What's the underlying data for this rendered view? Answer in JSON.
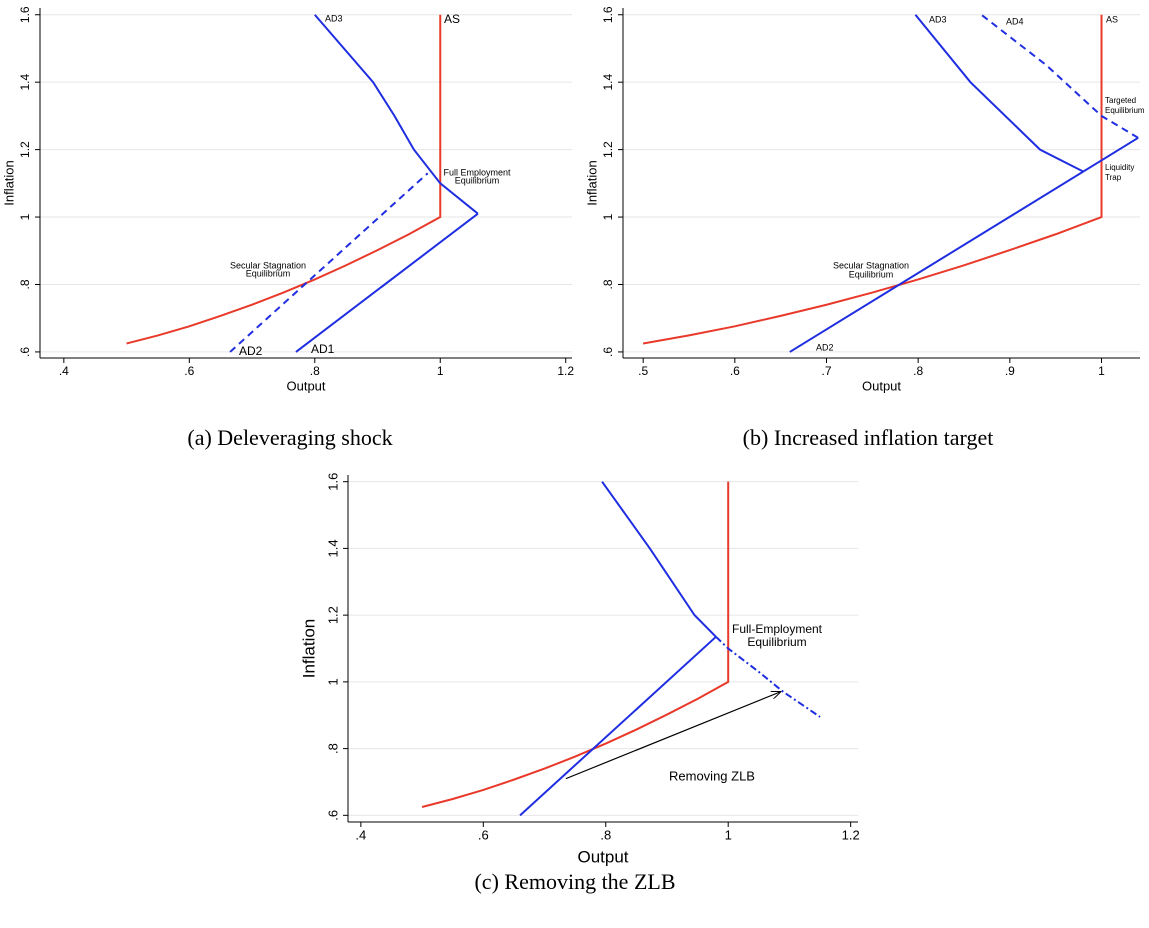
{
  "chart_data": [
    {
      "type": "line",
      "caption": "(a) Deleveraging shock",
      "x_label": "Output",
      "y_label": "Inflation",
      "xlim": [
        0.362,
        1.21
      ],
      "ylim": [
        0.582,
        1.62
      ],
      "grid": true,
      "xticks": [
        {
          "value": 0.4,
          "label": ".4"
        },
        {
          "value": 0.6,
          "label": ".6"
        },
        {
          "value": 0.8,
          "label": ".8"
        },
        1,
        1.2
      ],
      "yticks": [
        {
          "value": 0.6,
          "label": ".6"
        },
        {
          "value": 0.8,
          "label": ".8"
        },
        1,
        1.2,
        1.4,
        1.6
      ],
      "series": [
        {
          "name": "AS",
          "color": "#e8392a",
          "dash": "solid",
          "x": [
            0.5,
            0.55,
            0.6,
            0.65,
            0.7,
            0.75,
            0.8,
            0.85,
            0.9,
            0.95,
            1,
            1
          ],
          "values": [
            0.625,
            0.649,
            0.676,
            0.707,
            0.74,
            0.776,
            0.815,
            0.857,
            0.902,
            0.949,
            1,
            1.6
          ]
        },
        {
          "name": "AD1",
          "color": "#1f2ee0",
          "dash": "solid",
          "x": [
            0.77,
            1.06
          ],
          "values": [
            0.6,
            1.01
          ]
        },
        {
          "name": "AD3",
          "color": "#1f2ee0",
          "dash": "solid",
          "x": [
            1.06,
            1.0,
            0.958,
            0.927,
            0.893,
            0.8
          ],
          "values": [
            1.01,
            1.1,
            1.2,
            1.3,
            1.4,
            1.6
          ]
        },
        {
          "name": "AD2",
          "color": "#1f2ee0",
          "dash": "dashed",
          "x": [
            0.665,
            0.98
          ],
          "values": [
            0.6,
            1.13
          ]
        }
      ],
      "annotations": [
        [
          "Full Employment",
          "Equilibrium"
        ],
        [
          "Secular Stagnation",
          "Equilibrium"
        ]
      ]
    },
    {
      "type": "line",
      "caption": "(b) Increased inflation target",
      "x_label": "Output",
      "y_label": "Inflation",
      "xlim": [
        0.478,
        1.042
      ],
      "ylim": [
        0.582,
        1.62
      ],
      "grid": true,
      "xticks": [
        {
          "value": 0.5,
          "label": ".5"
        },
        {
          "value": 0.6,
          "label": ".6"
        },
        {
          "value": 0.7,
          "label": ".7"
        },
        {
          "value": 0.8,
          "label": ".8"
        },
        {
          "value": 0.9,
          "label": ".9"
        },
        1
      ],
      "yticks": [
        {
          "value": 0.6,
          "label": ".6"
        },
        {
          "value": 0.8,
          "label": ".8"
        },
        1,
        1.2,
        1.4,
        1.6
      ],
      "series": [
        {
          "name": "AS",
          "color": "#e8392a",
          "dash": "solid",
          "x": [
            0.5,
            0.55,
            0.6,
            0.65,
            0.7,
            0.75,
            0.8,
            0.85,
            0.9,
            0.95,
            1,
            1
          ],
          "values": [
            0.625,
            0.649,
            0.676,
            0.707,
            0.74,
            0.776,
            0.815,
            0.857,
            0.902,
            0.949,
            1,
            1.6
          ]
        },
        {
          "name": "AD2",
          "color": "#1f2ee0",
          "dash": "solid",
          "x": [
            0.66,
            1.04
          ],
          "values": [
            0.6,
            1.235
          ]
        },
        {
          "name": "AD3",
          "color": "#1f2ee0",
          "dash": "solid",
          "x": [
            0.98,
            0.933,
            0.857,
            0.797
          ],
          "values": [
            1.135,
            1.2,
            1.4,
            1.6
          ]
        },
        {
          "name": "AD4",
          "color": "#1f2ee0",
          "dash": "dashed",
          "x": [
            1.04,
            1.0,
            0.94,
            0.869
          ],
          "values": [
            1.235,
            1.3,
            1.45,
            1.6
          ]
        }
      ],
      "annotations": [
        [
          "Targeted",
          "Equilibrium"
        ],
        [
          "Liquidity",
          "Trap"
        ],
        [
          "Secular Stagnation",
          "Equilibrium"
        ]
      ]
    },
    {
      "type": "line",
      "caption": "(c) Removing the ZLB",
      "x_label": "Output",
      "y_label": "Inflation",
      "xlim": [
        0.379,
        1.212
      ],
      "ylim": [
        0.58,
        1.62
      ],
      "grid": true,
      "xticks": [
        {
          "value": 0.4,
          "label": ".4"
        },
        {
          "value": 0.6,
          "label": ".6"
        },
        {
          "value": 0.8,
          "label": ".8"
        },
        1,
        1.2
      ],
      "yticks": [
        {
          "value": 0.6,
          "label": ".6"
        },
        {
          "value": 0.8,
          "label": ".8"
        },
        1,
        1.2,
        1.4,
        1.6
      ],
      "series": [
        {
          "color": "#e8392a",
          "dash": "solid",
          "x": [
            0.5,
            0.55,
            0.6,
            0.65,
            0.7,
            0.75,
            0.8,
            0.85,
            0.9,
            0.95,
            1,
            1
          ],
          "values": [
            0.625,
            0.649,
            0.676,
            0.707,
            0.74,
            0.776,
            0.815,
            0.857,
            0.902,
            0.949,
            1,
            1.6
          ]
        },
        {
          "color": "#1f2ee0",
          "dash": "solid",
          "x": [
            0.66,
            0.98
          ],
          "values": [
            0.6,
            1.135
          ]
        },
        {
          "color": "#1f2ee0",
          "dash": "solid",
          "x": [
            0.98,
            0.945,
            0.872,
            0.794
          ],
          "values": [
            1.135,
            1.2,
            1.4,
            1.6
          ]
        },
        {
          "color": "#1f2ee0",
          "dash": "dashdot",
          "x": [
            0.98,
            1.0,
            1.05,
            1.09,
            1.15
          ],
          "values": [
            1.135,
            1.1,
            1.03,
            0.97,
            0.895
          ]
        }
      ],
      "arrow": {
        "x": [
          0.735,
          1.085
        ],
        "y": [
          0.71,
          0.97
        ]
      },
      "annotations": [
        [
          "Full-Employment",
          "Equilibrium"
        ],
        [
          "Removing ZLB"
        ]
      ]
    }
  ]
}
